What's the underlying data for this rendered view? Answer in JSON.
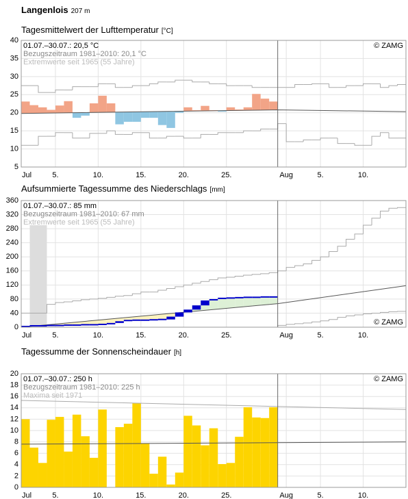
{
  "header": {
    "station": "Langenlois",
    "elevation": "207 m"
  },
  "chart_data": [
    {
      "type": "anomaly",
      "title": "Tagesmittelwert der Lufttemperatur",
      "unit": "[°C]",
      "notes": [
        "01.07.–30.07.: 20,5 °C",
        "Bezugszeitraum 1981–2010: 20,1 °C",
        "Extremwerte seit 1965 (55 Jahre)"
      ],
      "credit": "© ZAMG",
      "credit_corner": "top-right",
      "xlim": [
        0,
        45
      ],
      "xticks": [
        {
          "value": 0,
          "label": "Jul"
        },
        {
          "value": 4,
          "label": "5."
        },
        {
          "value": 9,
          "label": "10."
        },
        {
          "value": 14,
          "label": "15."
        },
        {
          "value": 19,
          "label": "20."
        },
        {
          "value": 24,
          "label": "25."
        },
        {
          "value": 31,
          "label": "Aug"
        },
        {
          "value": 35,
          "label": "5."
        },
        {
          "value": 40,
          "label": "10."
        }
      ],
      "ylim": [
        5,
        40
      ],
      "yticks": [
        5,
        10,
        15,
        20,
        25,
        30,
        35,
        40
      ],
      "marker_x": 30,
      "values": [
        23.1,
        22.1,
        21.5,
        20.8,
        22.0,
        23.2,
        18.6,
        19.2,
        22.6,
        24.7,
        22.6,
        16.8,
        17.5,
        17.5,
        18.6,
        18.6,
        16.6,
        15.8,
        20.0,
        21.5,
        20.7,
        21.9,
        20.7,
        20.3,
        21.5,
        20.9,
        21.5,
        25.2,
        23.9,
        23.1
      ],
      "above_color": "#f2a487",
      "below_color": "#8fc6e2",
      "mean": {
        "x": [
          0,
          30,
          45
        ],
        "values": [
          19.8,
          20.8,
          20.3
        ],
        "color": "#555555"
      },
      "extremes": [
        {
          "values": [
            27.5,
            27.5,
            25.6,
            25.6,
            26.3,
            26.3,
            27.2,
            27.2,
            27.2,
            28.0,
            28.0,
            27.0,
            27.0,
            27.5,
            27.5,
            28.0,
            28.5,
            28.5,
            29.0,
            29.0,
            28.5,
            28.5,
            28.0,
            28.0,
            27.5,
            27.5,
            27.5,
            27.0,
            27.0,
            27.0,
            27.0,
            27.0,
            27.8,
            27.8,
            28.0,
            28.0,
            27.0,
            27.0,
            27.5,
            27.5,
            28.0,
            28.0,
            27.0,
            27.5,
            27.8
          ],
          "color": "#aaaaaa"
        },
        {
          "values": [
            11.0,
            11.0,
            13.5,
            13.5,
            14.5,
            14.5,
            13.0,
            13.0,
            14.3,
            14.3,
            15.0,
            14.0,
            14.0,
            14.5,
            14.5,
            13.0,
            13.0,
            13.5,
            13.5,
            13.0,
            13.0,
            14.0,
            14.0,
            14.5,
            14.5,
            14.5,
            15.0,
            15.0,
            15.5,
            15.5,
            17.0,
            12.0,
            12.0,
            12.5,
            12.5,
            13.0,
            13.0,
            11.5,
            11.5,
            11.0,
            11.0,
            13.5,
            14.5,
            13.0,
            13.0
          ],
          "color": "#aaaaaa"
        }
      ]
    },
    {
      "type": "cumulative",
      "title": "Aufsummierte Tagessumme des Niederschlags",
      "unit": "[mm]",
      "notes": [
        "01.07.–30.07.: 85 mm",
        "Bezugszeitraum 1981–2010: 67 mm",
        "Extremwerte seit 1965 (55 Jahre)"
      ],
      "credit": "© ZAMG",
      "credit_corner": "bottom-right",
      "xlim": [
        0,
        45
      ],
      "xticks": [
        {
          "value": 0,
          "label": "Jul"
        },
        {
          "value": 4,
          "label": "5."
        },
        {
          "value": 9,
          "label": "10."
        },
        {
          "value": 14,
          "label": "15."
        },
        {
          "value": 19,
          "label": "20."
        },
        {
          "value": 24,
          "label": "25."
        },
        {
          "value": 31,
          "label": "Aug"
        },
        {
          "value": 35,
          "label": "5."
        },
        {
          "value": 40,
          "label": "10."
        }
      ],
      "ylim": [
        0,
        360
      ],
      "yticks": [
        0,
        40,
        80,
        120,
        160,
        200,
        240,
        280,
        320,
        360
      ],
      "marker_x": 30,
      "values": [
        2,
        2,
        3,
        3,
        4,
        4,
        5,
        5,
        6,
        8,
        12,
        17,
        18,
        18,
        19,
        20,
        22,
        30,
        42,
        50,
        62,
        76,
        80,
        81,
        82,
        83,
        83,
        84,
        84,
        85
      ],
      "color": "#0000cc",
      "below_fill": "#fbf2bf",
      "above_fill": "#ddf0d6",
      "shade": {
        "x": [
          1,
          3
        ],
        "value": 290,
        "color": "#dddddd"
      },
      "mean": {
        "x": [
          0,
          30,
          45
        ],
        "values": [
          0,
          67,
          118
        ],
        "color": "#555555"
      },
      "extremes": [
        {
          "values": [
            40,
            40,
            40,
            65,
            70,
            72,
            75,
            78,
            80,
            82,
            85,
            88,
            90,
            95,
            100,
            100,
            105,
            110,
            115,
            120,
            125,
            130,
            135,
            140,
            142,
            145,
            148,
            150,
            152,
            155,
            160,
            170,
            175,
            180,
            190,
            200,
            215,
            230,
            250,
            265,
            290,
            310,
            330,
            338,
            340
          ],
          "color": "#aaaaaa"
        },
        {
          "values": [
            0,
            0,
            0,
            0,
            0,
            0,
            0,
            0,
            0,
            0,
            0,
            0,
            0,
            0,
            0,
            0,
            0,
            0,
            0,
            0,
            0,
            0,
            0,
            0,
            0,
            0,
            0,
            0,
            0,
            0,
            5,
            8,
            10,
            12,
            15,
            18,
            22,
            28,
            32,
            35,
            38,
            40,
            42,
            44,
            45
          ],
          "color": "#aaaaaa"
        }
      ]
    },
    {
      "type": "bar",
      "title": "Tagessumme der Sonnenscheindauer",
      "unit": "[h]",
      "notes": [
        "01.07.–30.07.: 250 h",
        "Bezugszeitraum 1981–2010: 225 h",
        "Maxima seit 1971"
      ],
      "credit": "© ZAMG",
      "credit_corner": "top-right",
      "xlim": [
        0,
        45
      ],
      "xticks": [
        {
          "value": 0,
          "label": "Jul"
        },
        {
          "value": 4,
          "label": "5."
        },
        {
          "value": 9,
          "label": "10."
        },
        {
          "value": 14,
          "label": "15."
        },
        {
          "value": 19,
          "label": "20."
        },
        {
          "value": 24,
          "label": "25."
        },
        {
          "value": 31,
          "label": "Aug"
        },
        {
          "value": 35,
          "label": "5."
        },
        {
          "value": 40,
          "label": "10."
        }
      ],
      "ylim": [
        0,
        20
      ],
      "yticks": [
        0,
        2,
        4,
        6,
        8,
        10,
        12,
        14,
        16,
        18,
        20
      ],
      "marker_x": 30,
      "values": [
        12,
        7,
        4.3,
        11.9,
        12.4,
        6.3,
        12.8,
        9.0,
        5.2,
        13.7,
        0,
        10.6,
        11.2,
        14.8,
        7.7,
        2.4,
        5.4,
        0.5,
        2.6,
        12.6,
        10.9,
        7.4,
        10.4,
        4.1,
        4.3,
        8.9,
        14.1,
        12.3,
        12.2,
        14.1
      ],
      "color": "#fdd400",
      "mean": {
        "x": [
          0,
          45
        ],
        "values": [
          7.6,
          8.0
        ],
        "color": "#555555"
      },
      "extremes": [
        {
          "x": [
            0,
            45
          ],
          "values": [
            15.3,
            13.7
          ],
          "color": "#aaaaaa"
        }
      ]
    }
  ]
}
